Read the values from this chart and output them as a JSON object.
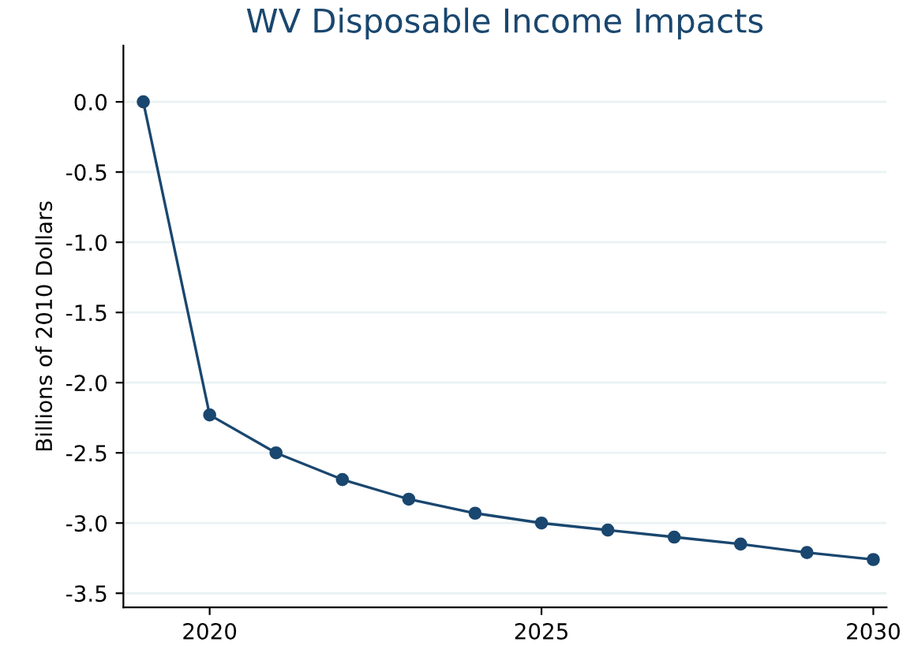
{
  "chart_data": {
    "type": "line",
    "title": "WV Disposable Income Impacts",
    "ylabel": "Billions of 2010 Dollars",
    "x": [
      2019,
      2020,
      2021,
      2022,
      2023,
      2024,
      2025,
      2026,
      2027,
      2028,
      2029,
      2030
    ],
    "series": [
      {
        "color": "#1a476f",
        "values": [
          0.0,
          -2.23,
          -2.5,
          -2.69,
          -2.83,
          -2.93,
          -3.0,
          -3.05,
          -3.1,
          -3.15,
          -3.21,
          -3.26
        ]
      }
    ],
    "xlim": [
      2018.7,
      2030.2
    ],
    "ylim": [
      -3.6,
      0.4
    ],
    "xticks": [
      2020,
      2025,
      2030
    ],
    "yticks": [
      {
        "value": 0,
        "label": "0.0"
      },
      {
        "value": -0.5,
        "label": "-0.5"
      },
      {
        "value": -1,
        "label": "-1.0"
      },
      {
        "value": -1.5,
        "label": "-1.5"
      },
      {
        "value": -2,
        "label": "-2.0"
      },
      {
        "value": -2.5,
        "label": "-2.5"
      },
      {
        "value": -3,
        "label": "-3.0"
      },
      {
        "value": -3.5,
        "label": "-3.5"
      }
    ],
    "grid": "y",
    "marker": "circle",
    "line_style": "solid"
  }
}
